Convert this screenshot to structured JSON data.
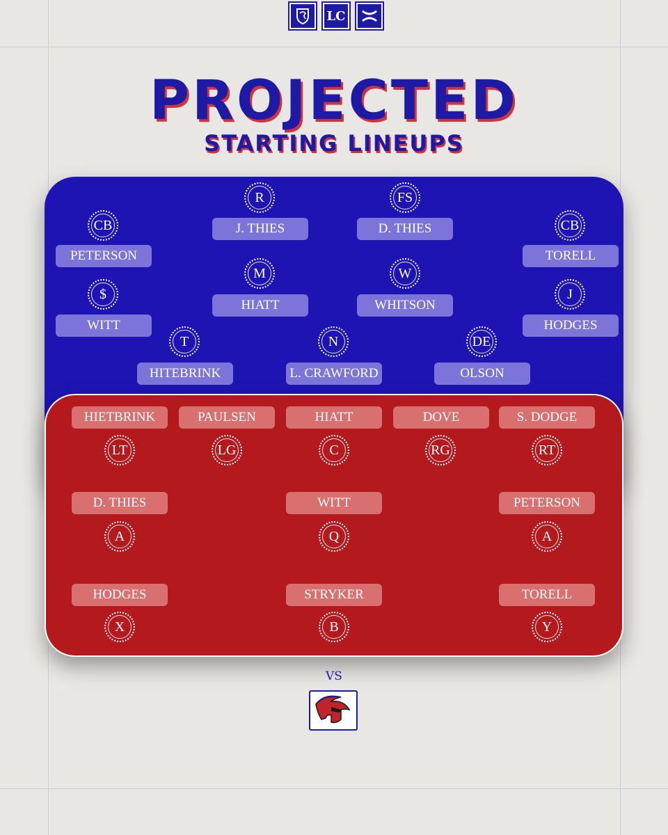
{
  "header": {
    "logos": [
      "crest-logo",
      "lc-logo",
      "under-armour-logo"
    ],
    "logo_text": {
      "lc": "LC"
    },
    "title": "PROJECTED",
    "subtitle": "STARTING LINEUPS"
  },
  "colors": {
    "blue": "#1e14b3",
    "red": "#b4191e",
    "accent": "#d2323a"
  },
  "defense": [
    {
      "pos": "R",
      "name": "J. THIES"
    },
    {
      "pos": "FS",
      "name": "D. THIES"
    },
    {
      "pos": "CB",
      "name": "PETERSON"
    },
    {
      "pos": "CB",
      "name": "TORELL"
    },
    {
      "pos": "M",
      "name": "HIATT"
    },
    {
      "pos": "W",
      "name": "WHITSON"
    },
    {
      "pos": "$",
      "name": "WITT"
    },
    {
      "pos": "J",
      "name": "HODGES"
    },
    {
      "pos": "T",
      "name": "HITEBRINK"
    },
    {
      "pos": "N",
      "name": "L. CRAWFORD"
    },
    {
      "pos": "DE",
      "name": "OLSON"
    }
  ],
  "offense": [
    {
      "pos": "LT",
      "name": "HIETBRINK"
    },
    {
      "pos": "LG",
      "name": "PAULSEN"
    },
    {
      "pos": "C",
      "name": "HIATT"
    },
    {
      "pos": "RG",
      "name": "DOVE"
    },
    {
      "pos": "RT",
      "name": "S. DODGE"
    },
    {
      "pos": "A",
      "name": "D. THIES"
    },
    {
      "pos": "Q",
      "name": "WITT"
    },
    {
      "pos": "A",
      "name": "PETERSON"
    },
    {
      "pos": "X",
      "name": "HODGES"
    },
    {
      "pos": "B",
      "name": "STRYKER"
    },
    {
      "pos": "Y",
      "name": "TORELL"
    }
  ],
  "vs_label": "VS",
  "opponent_logo": "spartan-helmet-icon"
}
